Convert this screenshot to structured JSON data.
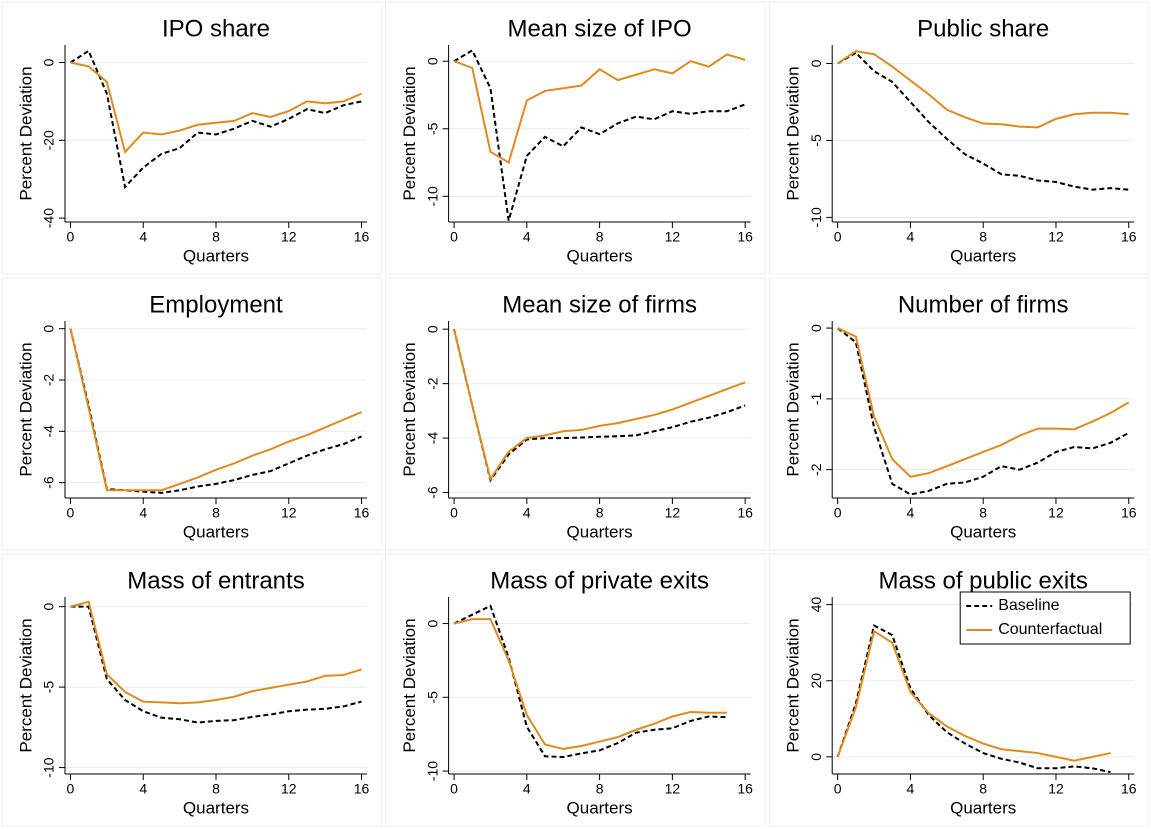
{
  "chart_data": [
    {
      "type": "line",
      "title": "IPO share",
      "xlabel": "Quarters",
      "ylabel": "Percent Deviation",
      "x": [
        0,
        1,
        2,
        3,
        4,
        5,
        6,
        7,
        8,
        9,
        10,
        11,
        12,
        13,
        14,
        15,
        16
      ],
      "xlim": [
        -0.3,
        16.3
      ],
      "xticks": [
        0,
        4,
        8,
        12,
        16
      ],
      "ylim": [
        -41,
        4.5
      ],
      "yticks": [
        0,
        -20,
        -40
      ],
      "grid": true,
      "series": [
        {
          "color": "#000000",
          "line_style": "dashed",
          "values": [
            0,
            3,
            -8,
            -32,
            -27,
            -23.5,
            -22,
            -18,
            -18.5,
            -17,
            -15,
            -16.5,
            -14.5,
            -12,
            -13,
            -11,
            -10
          ]
        },
        {
          "color": "#e08a1e",
          "line_style": "solid",
          "values": [
            0,
            -1,
            -5,
            -23,
            -18,
            -18.5,
            -17.5,
            -16,
            -15.5,
            -15,
            -13,
            -14,
            -12.5,
            -10,
            -10.5,
            -10,
            -8
          ]
        }
      ]
    },
    {
      "type": "line",
      "title": "Mean size of IPO",
      "xlabel": "Quarters",
      "ylabel": "Percent Deviation",
      "x": [
        0,
        1,
        2,
        3,
        4,
        5,
        6,
        7,
        8,
        9,
        10,
        11,
        12,
        13,
        14,
        15,
        16
      ],
      "xlim": [
        -0.3,
        16.3
      ],
      "xticks": [
        0,
        4,
        8,
        12,
        16
      ],
      "ylim": [
        -11.9,
        1.2
      ],
      "yticks": [
        0,
        -5,
        -10
      ],
      "grid": true,
      "series": [
        {
          "color": "#000000",
          "line_style": "dashed",
          "values": [
            0,
            0.8,
            -2,
            -11.8,
            -7,
            -5.6,
            -6.3,
            -4.9,
            -5.4,
            -4.6,
            -4.1,
            -4.3,
            -3.7,
            -3.9,
            -3.7,
            -3.7,
            -3.2
          ]
        },
        {
          "color": "#e08a1e",
          "line_style": "solid",
          "values": [
            0,
            -0.5,
            -6.7,
            -7.5,
            -2.9,
            -2.2,
            -2,
            -1.8,
            -0.6,
            -1.4,
            -1,
            -0.6,
            -0.9,
            0,
            -0.4,
            0.5,
            0.1
          ]
        }
      ]
    },
    {
      "type": "line",
      "title": "Public share",
      "xlabel": "Quarters",
      "ylabel": "Percent Deviation",
      "x": [
        0,
        1,
        2,
        3,
        4,
        5,
        6,
        7,
        8,
        9,
        10,
        11,
        12,
        13,
        14,
        15,
        16
      ],
      "xlim": [
        -0.3,
        16.3
      ],
      "xticks": [
        0,
        4,
        8,
        12,
        16
      ],
      "ylim": [
        -10.3,
        1.2
      ],
      "yticks": [
        0,
        -5,
        -10
      ],
      "grid": true,
      "series": [
        {
          "color": "#000000",
          "line_style": "dashed",
          "values": [
            0,
            0.7,
            -0.5,
            -1.2,
            -2.5,
            -3.8,
            -4.9,
            -5.9,
            -6.5,
            -7.2,
            -7.3,
            -7.6,
            -7.7,
            -8,
            -8.2,
            -8.1,
            -8.2
          ]
        },
        {
          "color": "#e08a1e",
          "line_style": "solid",
          "values": [
            0,
            0.8,
            0.6,
            -0.2,
            -1.1,
            -2,
            -3,
            -3.5,
            -3.9,
            -3.95,
            -4.1,
            -4.15,
            -3.6,
            -3.3,
            -3.2,
            -3.2,
            -3.3
          ]
        }
      ]
    },
    {
      "type": "line",
      "title": "Employment",
      "xlabel": "Quarters",
      "ylabel": "Percent Deviation",
      "x": [
        0,
        1,
        2,
        3,
        4,
        5,
        6,
        7,
        8,
        9,
        10,
        11,
        12,
        13,
        14,
        15,
        16
      ],
      "xlim": [
        -0.3,
        16.3
      ],
      "xticks": [
        0,
        4,
        8,
        12,
        16
      ],
      "ylim": [
        -6.6,
        0.3
      ],
      "yticks": [
        0,
        -2,
        -4,
        -6
      ],
      "grid": true,
      "series": [
        {
          "color": "#000000",
          "line_style": "dashed",
          "values": [
            0,
            -3,
            -6.25,
            -6.3,
            -6.35,
            -6.4,
            -6.3,
            -6.15,
            -6.05,
            -5.9,
            -5.7,
            -5.55,
            -5.25,
            -4.95,
            -4.7,
            -4.5,
            -4.2
          ]
        },
        {
          "color": "#e08a1e",
          "line_style": "solid",
          "values": [
            0,
            -3.1,
            -6.3,
            -6.3,
            -6.3,
            -6.3,
            -6.05,
            -5.8,
            -5.5,
            -5.25,
            -4.95,
            -4.7,
            -4.4,
            -4.15,
            -3.85,
            -3.55,
            -3.25
          ]
        }
      ]
    },
    {
      "type": "line",
      "title": "Mean size of firms",
      "xlabel": "Quarters",
      "ylabel": "Percent Deviation",
      "x": [
        0,
        1,
        2,
        3,
        4,
        5,
        6,
        7,
        8,
        9,
        10,
        11,
        12,
        13,
        14,
        15,
        16
      ],
      "xlim": [
        -0.3,
        16.3
      ],
      "xticks": [
        0,
        4,
        8,
        12,
        16
      ],
      "ylim": [
        -6.2,
        0.3
      ],
      "yticks": [
        0,
        -2,
        -4,
        -6
      ],
      "grid": true,
      "series": [
        {
          "color": "#000000",
          "line_style": "dashed",
          "values": [
            0,
            -2.8,
            -5.55,
            -4.6,
            -4.05,
            -4,
            -4,
            -3.98,
            -3.95,
            -3.93,
            -3.9,
            -3.75,
            -3.6,
            -3.4,
            -3.25,
            -3.05,
            -2.8
          ]
        },
        {
          "color": "#e08a1e",
          "line_style": "solid",
          "values": [
            0,
            -2.8,
            -5.5,
            -4.5,
            -4,
            -3.9,
            -3.75,
            -3.7,
            -3.55,
            -3.45,
            -3.3,
            -3.15,
            -2.95,
            -2.7,
            -2.45,
            -2.2,
            -1.95
          ]
        }
      ]
    },
    {
      "type": "line",
      "title": "Number of firms",
      "xlabel": "Quarters",
      "ylabel": "Percent Deviation",
      "x": [
        0,
        1,
        2,
        3,
        4,
        5,
        6,
        7,
        8,
        9,
        10,
        11,
        12,
        13,
        14,
        15,
        16
      ],
      "xlim": [
        -0.3,
        16.3
      ],
      "xticks": [
        0,
        4,
        8,
        12,
        16
      ],
      "ylim": [
        -2.4,
        0.1
      ],
      "yticks": [
        0,
        -1,
        -2
      ],
      "grid": true,
      "series": [
        {
          "color": "#000000",
          "line_style": "dashed",
          "values": [
            0,
            -0.2,
            -1.4,
            -2.2,
            -2.35,
            -2.3,
            -2.2,
            -2.18,
            -2.1,
            -1.95,
            -2,
            -1.9,
            -1.75,
            -1.68,
            -1.7,
            -1.62,
            -1.48
          ]
        },
        {
          "color": "#e08a1e",
          "line_style": "solid",
          "values": [
            0,
            -0.12,
            -1.25,
            -1.85,
            -2.1,
            -2.05,
            -1.95,
            -1.85,
            -1.75,
            -1.65,
            -1.52,
            -1.42,
            -1.42,
            -1.43,
            -1.32,
            -1.2,
            -1.05
          ]
        }
      ]
    },
    {
      "type": "line",
      "title": "Mass of entrants",
      "xlabel": "Quarters",
      "ylabel": "Percent Deviation",
      "x": [
        0,
        1,
        2,
        3,
        4,
        5,
        6,
        7,
        8,
        9,
        10,
        11,
        12,
        13,
        14,
        15,
        16
      ],
      "xlim": [
        -0.3,
        16.3
      ],
      "xticks": [
        0,
        4,
        8,
        12,
        16
      ],
      "ylim": [
        -10.4,
        0.6
      ],
      "yticks": [
        0,
        -5,
        -10
      ],
      "grid": true,
      "series": [
        {
          "color": "#000000",
          "line_style": "dashed",
          "values": [
            0,
            0,
            -4.5,
            -5.8,
            -6.5,
            -6.9,
            -7,
            -7.2,
            -7.1,
            -7.05,
            -6.85,
            -6.7,
            -6.5,
            -6.4,
            -6.35,
            -6.2,
            -5.9
          ]
        },
        {
          "color": "#e08a1e",
          "line_style": "solid",
          "values": [
            0,
            0.3,
            -4.2,
            -5.3,
            -5.9,
            -5.95,
            -6,
            -5.95,
            -5.8,
            -5.6,
            -5.25,
            -5.05,
            -4.85,
            -4.65,
            -4.3,
            -4.25,
            -3.9
          ]
        }
      ]
    },
    {
      "type": "line",
      "title": "Mass of private exits",
      "xlabel": "Quarters",
      "ylabel": "Percent Deviation",
      "x": [
        0,
        1,
        2,
        3,
        4,
        5,
        6,
        7,
        8,
        9,
        10,
        11,
        12,
        13,
        14,
        15
      ],
      "xlim": [
        -0.3,
        16.3
      ],
      "xticks": [
        0,
        4,
        8,
        12,
        16
      ],
      "ylim": [
        -10.2,
        1.8
      ],
      "yticks": [
        0,
        -5,
        -10
      ],
      "grid": true,
      "series": [
        {
          "color": "#000000",
          "line_style": "dashed",
          "values": [
            0,
            0.6,
            1.2,
            -2.3,
            -7,
            -9,
            -9.05,
            -8.8,
            -8.6,
            -8.1,
            -7.4,
            -7.2,
            -7.1,
            -6.6,
            -6.3,
            -6.35
          ]
        },
        {
          "color": "#e08a1e",
          "line_style": "solid",
          "values": [
            0,
            0.3,
            0.3,
            -2.5,
            -6.2,
            -8.2,
            -8.5,
            -8.3,
            -8,
            -7.7,
            -7.2,
            -6.8,
            -6.3,
            -6,
            -6.05,
            -6.05
          ]
        }
      ]
    },
    {
      "type": "line",
      "title": "Mass of public exits",
      "xlabel": "Quarters",
      "ylabel": "Percent Deviation",
      "x": [
        0,
        1,
        2,
        3,
        4,
        5,
        6,
        7,
        8,
        9,
        10,
        11,
        12,
        13,
        14,
        15
      ],
      "xlim": [
        -0.3,
        16.3
      ],
      "xticks": [
        0,
        4,
        8,
        12,
        16
      ],
      "ylim": [
        -4.5,
        42
      ],
      "yticks": [
        0,
        20,
        40
      ],
      "grid": true,
      "legend": "upper right",
      "series": [
        {
          "name": "Baseline",
          "color": "#000000",
          "line_style": "dashed",
          "values": [
            0,
            14,
            34.5,
            32,
            18,
            11,
            6.5,
            3.5,
            1,
            -0.5,
            -1.5,
            -3,
            -3,
            -2.5,
            -3,
            -4
          ]
        },
        {
          "name": "Counterfactual",
          "color": "#e08a1e",
          "line_style": "solid",
          "values": [
            0,
            13,
            33,
            30,
            17,
            11.5,
            8,
            5.5,
            3.5,
            2,
            1.5,
            1,
            0,
            -1,
            0,
            1
          ]
        }
      ]
    }
  ]
}
